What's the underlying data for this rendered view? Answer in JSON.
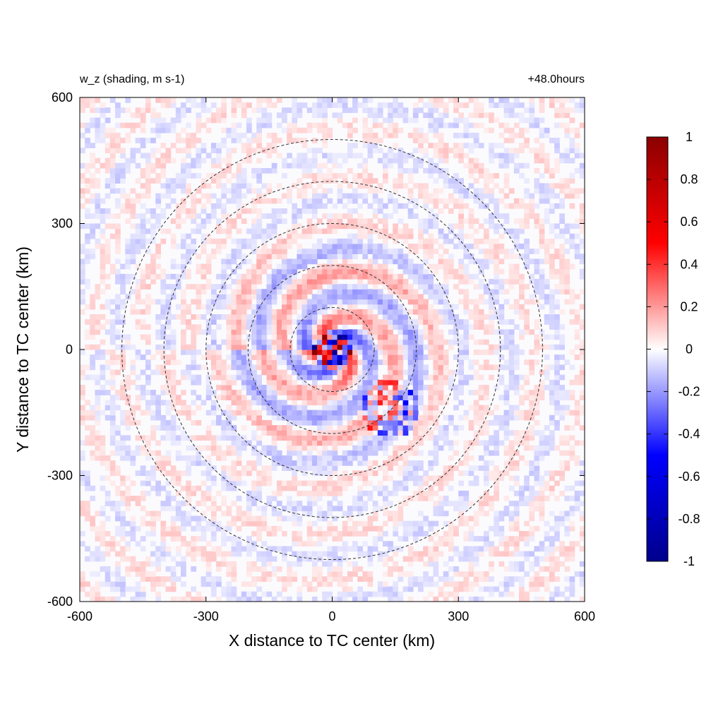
{
  "chart_data": {
    "type": "heatmap",
    "title_left": "w_z (shading, m s-1)",
    "title_right": "+48.0hours",
    "xlabel": "X distance to TC center (km)",
    "ylabel": "Y distance to TC center (km)",
    "xlim": [
      -600,
      600
    ],
    "ylim": [
      -600,
      600
    ],
    "xticks": [
      -600,
      -300,
      0,
      300,
      600
    ],
    "yticks": [
      -600,
      -300,
      0,
      300,
      600
    ],
    "xtick_labels": [
      "-600",
      "-300",
      "0",
      "300",
      "600"
    ],
    "ytick_labels": [
      "-600",
      "-300",
      "0",
      "300",
      "600"
    ],
    "colorbar": {
      "min": -1,
      "max": 1,
      "ticks": [
        1,
        0.8,
        0.6,
        0.4,
        0.2,
        0,
        -0.2,
        -0.4,
        -0.6,
        -0.8,
        -1
      ],
      "tick_labels": [
        "1",
        "0.8",
        "0.6",
        "0.4",
        "0.2",
        "0",
        "-0.2",
        "-0.4",
        "-0.6",
        "-0.8",
        "-1"
      ],
      "colors": [
        "#00008b",
        "#0000ff",
        "#ffffff",
        "#ff0000",
        "#8b0000"
      ]
    },
    "range_rings_km": [
      100,
      200,
      300,
      400,
      500
    ],
    "range_ring_style": "dashed",
    "grid": false,
    "legend": "colorbar-right"
  }
}
